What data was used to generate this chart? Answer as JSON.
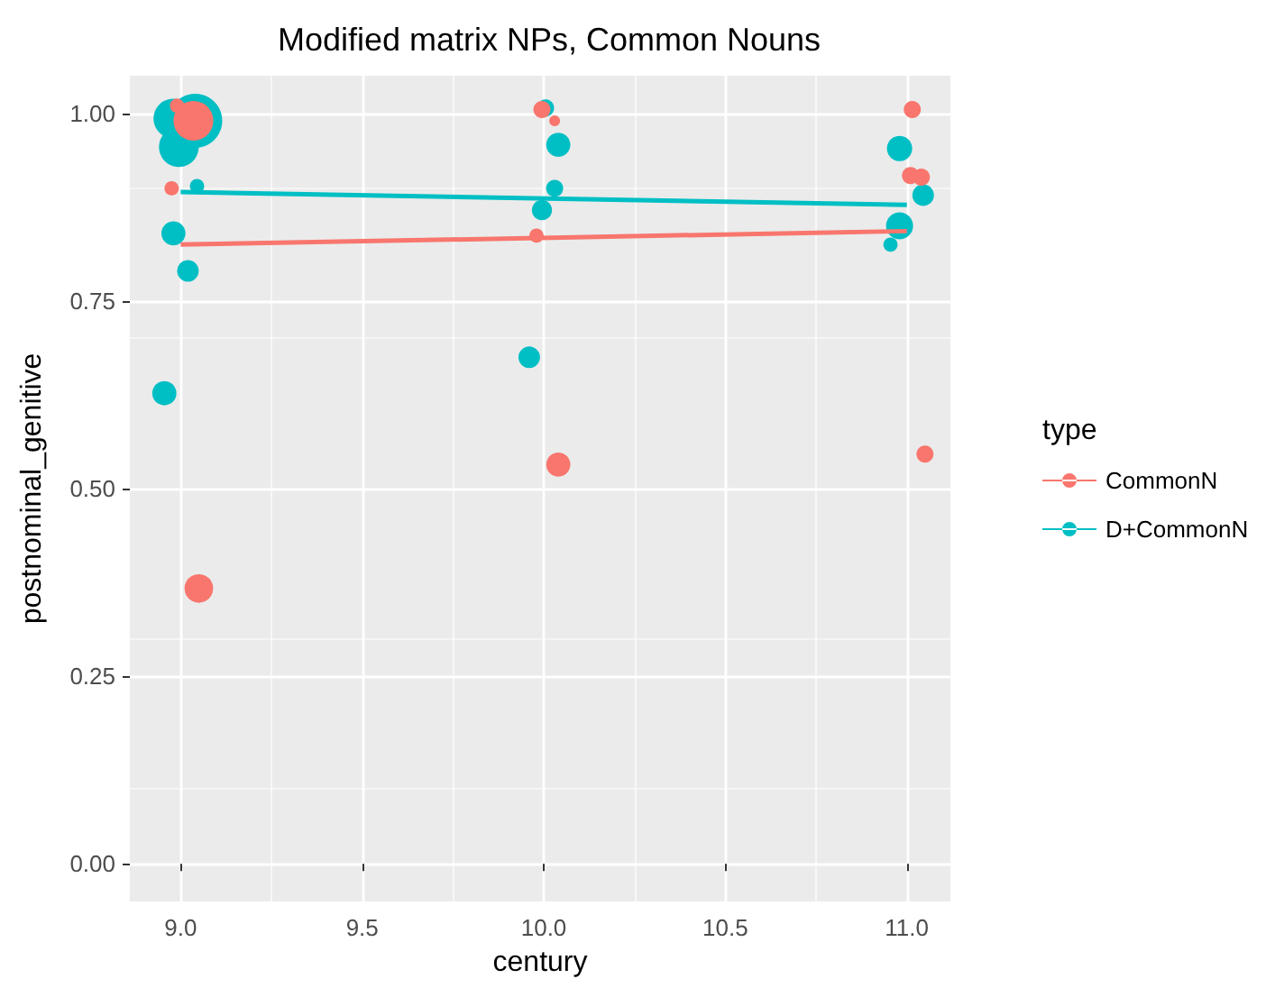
{
  "chart_data": {
    "type": "bubble",
    "title": "Modified matrix NPs, Common Nouns",
    "xlabel": "century",
    "ylabel": "postnominal_genitive",
    "legend_title": "type",
    "legend": "right",
    "grid": true,
    "xlim": [
      8.86,
      11.12
    ],
    "ylim": [
      -0.05,
      1.05
    ],
    "xticks": [
      {
        "value": 9,
        "label": "9.0"
      },
      {
        "value": 9.5,
        "label": "9.5"
      },
      {
        "value": 10,
        "label": "10.0"
      },
      {
        "value": 10.5,
        "label": "10.5"
      },
      {
        "value": 11,
        "label": "11.0"
      }
    ],
    "yticks": [
      {
        "value": 0,
        "label": "0.00"
      },
      {
        "value": 0.25,
        "label": "0.25"
      },
      {
        "value": 0.5,
        "label": "0.50"
      },
      {
        "value": 0.75,
        "label": "0.75"
      },
      {
        "value": 1,
        "label": "1.00"
      }
    ],
    "series": [
      {
        "name": "CommonN",
        "color": "#f8766d",
        "x": [
          8.99,
          9.035,
          8.975,
          9.05,
          9.995,
          10.03,
          9.98,
          10.04,
          11.015,
          11.01,
          11.04,
          11.05
        ],
        "values": [
          1.01,
          0.99,
          0.9,
          0.367,
          1.005,
          0.99,
          0.837,
          0.532,
          1.005,
          0.917,
          0.915,
          0.546
        ],
        "sizes": [
          0.07,
          0.54,
          0.07,
          0.28,
          0.1,
          0.04,
          0.07,
          0.2,
          0.1,
          0.1,
          0.1,
          0.1
        ]
      },
      {
        "name": "D+CommonN",
        "color": "#00bfc4",
        "x": [
          8.98,
          9.04,
          8.995,
          9.045,
          8.98,
          9.02,
          8.955,
          10.005,
          10.04,
          10.03,
          9.995,
          9.96,
          10.98,
          11.045,
          10.98,
          10.955
        ],
        "values": [
          0.993,
          0.99,
          0.955,
          0.903,
          0.84,
          0.79,
          0.627,
          1.007,
          0.958,
          0.9,
          0.871,
          0.675,
          0.953,
          0.891,
          0.85,
          0.825
        ],
        "sizes": [
          0.54,
          1,
          0.54,
          0.07,
          0.2,
          0.16,
          0.2,
          0.1,
          0.2,
          0.1,
          0.14,
          0.16,
          0.22,
          0.16,
          0.25,
          0.07
        ]
      },
      {
        "type": "line",
        "color": "#f8766d",
        "x": [
          9,
          11
        ],
        "values": [
          0.825,
          0.843
        ]
      },
      {
        "type": "line",
        "color": "#00bfc4",
        "x": [
          9,
          11
        ],
        "values": [
          0.895,
          0.878
        ]
      }
    ]
  }
}
